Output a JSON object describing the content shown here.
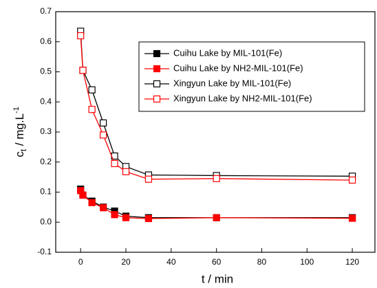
{
  "chart_data": {
    "type": "line",
    "x_label": "t / min",
    "y_label": {
      "base": "c",
      "sub": "t",
      "unit": " / mg.L",
      "sup": "-1"
    },
    "x": [
      0,
      1,
      5,
      10,
      15,
      20,
      30,
      60,
      120
    ],
    "series": [
      {
        "name": "Cuihu Lake by MIL-101(Fe)",
        "color": "#000000",
        "filled": true,
        "values": [
          0.11,
          0.09,
          0.07,
          0.05,
          0.037,
          0.02,
          0.015,
          0.015,
          0.015
        ]
      },
      {
        "name": "Cuihu Lake by NH2-MIL-101(Fe)",
        "color": "#ff0000",
        "filled": true,
        "values": [
          0.105,
          0.09,
          0.065,
          0.048,
          0.025,
          0.015,
          0.012,
          0.015,
          0.013
        ]
      },
      {
        "name": "Xingyun Lake by MIL-101(Fe)",
        "color": "#000000",
        "filled": false,
        "values": [
          0.635,
          0.505,
          0.44,
          0.33,
          0.22,
          0.185,
          0.157,
          0.155,
          0.153
        ]
      },
      {
        "name": "Xingyun Lake by NH2-MIL-101(Fe)",
        "color": "#ff0000",
        "filled": false,
        "values": [
          0.62,
          0.505,
          0.375,
          0.29,
          0.195,
          0.168,
          0.143,
          0.145,
          0.14
        ]
      }
    ],
    "xlim": [
      -11,
      130
    ],
    "ylim": [
      -0.1,
      0.7
    ],
    "xticks": [
      0,
      20,
      40,
      60,
      80,
      100,
      120
    ],
    "yticks": [
      -0.1,
      {
        "value": 0,
        "label": "0.0"
      },
      0.1,
      0.2,
      0.3,
      0.4,
      0.5,
      0.6,
      0.7
    ]
  }
}
